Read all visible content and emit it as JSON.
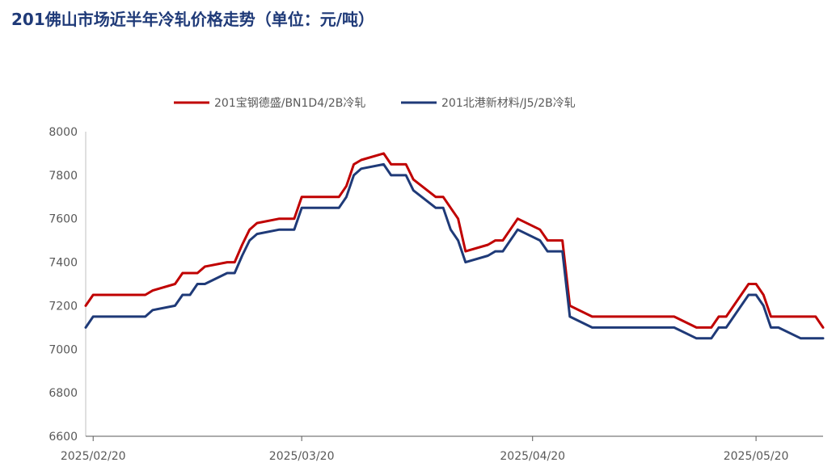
{
  "title": "201佛山市场近半年冷轧价格走势（单位：元/吨）",
  "chart_data": {
    "type": "line",
    "title": "201佛山市场近半年冷轧价格走势（单位：元/吨）",
    "xlabel": "",
    "ylabel": "",
    "ylim": [
      6600,
      8000
    ],
    "yticks": [
      6600,
      6800,
      7000,
      7200,
      7400,
      7600,
      7800,
      8000
    ],
    "x_range": [
      "2025/02/19",
      "2025/05/29"
    ],
    "xtick_labels": [
      "2025/02/20",
      "2025/03/20",
      "2025/04/20",
      "2025/05/20"
    ],
    "legend_position": "top",
    "grid": false,
    "x": [
      "2025/02/19",
      "2025/02/20",
      "2025/02/21",
      "2025/02/24",
      "2025/02/25",
      "2025/02/26",
      "2025/02/27",
      "2025/02/28",
      "2025/03/03",
      "2025/03/04",
      "2025/03/05",
      "2025/03/06",
      "2025/03/07",
      "2025/03/10",
      "2025/03/11",
      "2025/03/12",
      "2025/03/13",
      "2025/03/14",
      "2025/03/17",
      "2025/03/18",
      "2025/03/19",
      "2025/03/20",
      "2025/03/21",
      "2025/03/24",
      "2025/03/25",
      "2025/03/26",
      "2025/03/27",
      "2025/03/28",
      "2025/03/31",
      "2025/04/01",
      "2025/04/02",
      "2025/04/03",
      "2025/04/04",
      "2025/04/07",
      "2025/04/08",
      "2025/04/09",
      "2025/04/10",
      "2025/04/11",
      "2025/04/14",
      "2025/04/15",
      "2025/04/16",
      "2025/04/17",
      "2025/04/18",
      "2025/04/21",
      "2025/04/22",
      "2025/04/23",
      "2025/04/24",
      "2025/04/25",
      "2025/04/28",
      "2025/04/29",
      "2025/04/30",
      "2025/05/06",
      "2025/05/07",
      "2025/05/08",
      "2025/05/09",
      "2025/05/12",
      "2025/05/13",
      "2025/05/14",
      "2025/05/15",
      "2025/05/16",
      "2025/05/19",
      "2025/05/20",
      "2025/05/21",
      "2025/05/22",
      "2025/05/23",
      "2025/05/26",
      "2025/05/27",
      "2025/05/28",
      "2025/05/29"
    ],
    "series": [
      {
        "name": "201宝钢德盛/BN1D4/2B冷轧",
        "color": "#c00000",
        "values": [
          7200,
          7250,
          7250,
          7250,
          7250,
          7250,
          7250,
          7270,
          7300,
          7350,
          7350,
          7350,
          7380,
          7400,
          7400,
          7480,
          7550,
          7580,
          7600,
          7600,
          7600,
          7700,
          7700,
          7700,
          7700,
          7750,
          7850,
          7870,
          7900,
          7850,
          7850,
          7850,
          7780,
          7700,
          7700,
          7650,
          7600,
          7450,
          7480,
          7500,
          7500,
          7550,
          7600,
          7550,
          7500,
          7500,
          7500,
          7200,
          7150,
          7150,
          7150,
          7150,
          7150,
          7150,
          7150,
          7100,
          7100,
          7100,
          7150,
          7150,
          7300,
          7300,
          7250,
          7150,
          7150,
          7150,
          7150,
          7150,
          7100
        ]
      },
      {
        "name": "201北港新材料/J5/2B冷轧",
        "color": "#1f3a78",
        "values": [
          7100,
          7150,
          7150,
          7150,
          7150,
          7150,
          7150,
          7180,
          7200,
          7250,
          7250,
          7300,
          7300,
          7350,
          7350,
          7430,
          7500,
          7530,
          7550,
          7550,
          7550,
          7650,
          7650,
          7650,
          7650,
          7700,
          7800,
          7830,
          7850,
          7800,
          7800,
          7800,
          7730,
          7650,
          7650,
          7550,
          7500,
          7400,
          7430,
          7450,
          7450,
          7500,
          7550,
          7500,
          7450,
          7450,
          7450,
          7150,
          7100,
          7100,
          7100,
          7100,
          7100,
          7100,
          7100,
          7050,
          7050,
          7050,
          7100,
          7100,
          7250,
          7250,
          7200,
          7100,
          7100,
          7050,
          7050,
          7050,
          7050
        ]
      }
    ]
  }
}
